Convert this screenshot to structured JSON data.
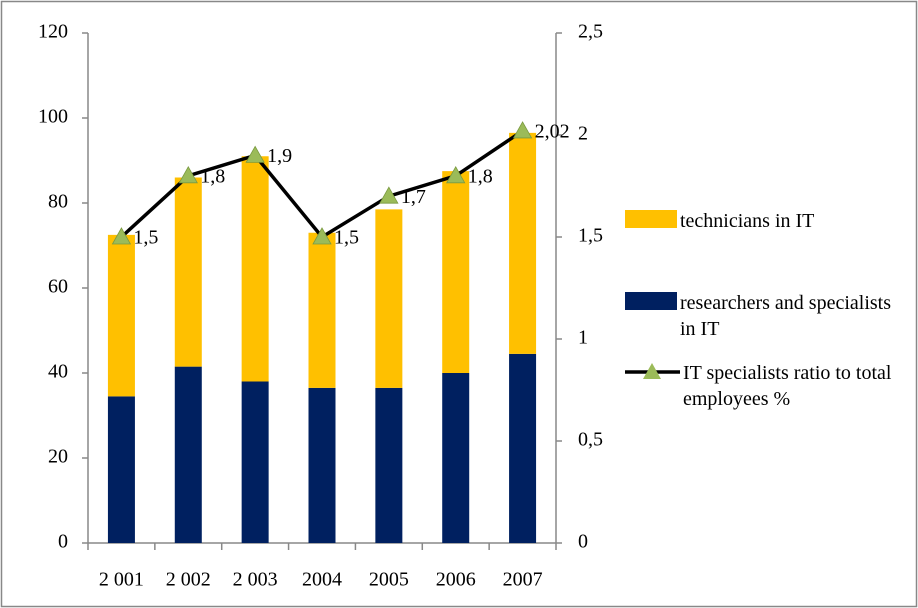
{
  "chart_data": {
    "type": "bar",
    "categories": [
      "2 001",
      "2 002",
      "2 003",
      "2004",
      "2005",
      "2006",
      "2007"
    ],
    "series": [
      {
        "name": "technicians in IT",
        "type": "bar",
        "color": "#ffc000",
        "values": [
          38,
          44.5,
          53,
          36.5,
          42,
          47.5,
          52
        ]
      },
      {
        "name": "researchers and specialists in IT",
        "type": "bar",
        "color": "#002060",
        "values": [
          34.5,
          41.5,
          38,
          36.5,
          36.5,
          40,
          44.5
        ]
      },
      {
        "name": "IT specialists ratio to total employees %",
        "type": "line",
        "axis": "y2",
        "color": "#000000",
        "marker_color": "#9bbb59",
        "values": [
          1.5,
          1.8,
          1.9,
          1.5,
          1.7,
          1.8,
          2.02
        ],
        "value_labels": [
          "1,5",
          "1,8",
          "1,9",
          "1,5",
          "1,7",
          "1,8",
          "2,02"
        ]
      }
    ],
    "stacked": true,
    "ylim": [
      0,
      120
    ],
    "yticks": [
      0,
      20,
      40,
      60,
      80,
      100,
      120
    ],
    "y2lim": [
      0,
      2.5
    ],
    "y2ticks": [
      0,
      {
        "value": 0.5,
        "label": "0,5"
      },
      1,
      {
        "value": 1.5,
        "label": "1,5"
      },
      2,
      {
        "value": 2.5,
        "label": "2,5"
      }
    ],
    "grid": false,
    "legend": "right"
  }
}
